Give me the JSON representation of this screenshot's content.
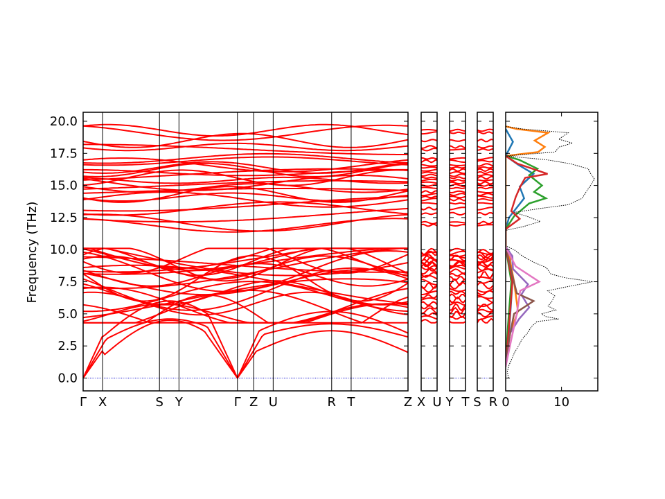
{
  "chart_data": {
    "type": "line",
    "ylabel": "Frequency (THz)",
    "ylim": [
      -1.0,
      20.7
    ],
    "y_ticks": [
      "0.0",
      "2.5",
      "5.0",
      "7.5",
      "10.0",
      "12.5",
      "15.0",
      "17.5",
      "20.0"
    ],
    "y_tick_values": [
      0.0,
      2.5,
      5.0,
      7.5,
      10.0,
      12.5,
      15.0,
      17.5,
      20.0
    ],
    "band_color": "#ff0000",
    "zero_line_color": "#0000cc",
    "band_panels": [
      {
        "kpoints": [
          {
            "label": "Γ",
            "pos": 0.0
          },
          {
            "label": "X",
            "pos": 0.06
          },
          {
            "label": "S",
            "pos": 0.235
          },
          {
            "label": "Y",
            "pos": 0.295
          },
          {
            "label": "Γ",
            "pos": 0.475
          },
          {
            "label": "Z",
            "pos": 0.525
          },
          {
            "label": "U",
            "pos": 0.585
          },
          {
            "label": "R",
            "pos": 0.765
          },
          {
            "label": "T",
            "pos": 0.825
          },
          {
            "label": "Z",
            "pos": 1.0
          }
        ]
      },
      {
        "kpoints": [
          {
            "label": "X",
            "pos": 0.0
          },
          {
            "label": "U",
            "pos": 1.0
          }
        ]
      },
      {
        "kpoints": [
          {
            "label": "Y",
            "pos": 0.0
          },
          {
            "label": "T",
            "pos": 1.0
          }
        ]
      },
      {
        "kpoints": [
          {
            "label": "S",
            "pos": 0.0
          },
          {
            "label": "R",
            "pos": 1.0
          }
        ]
      }
    ],
    "dos_panel": {
      "xlim": [
        0,
        16.5
      ],
      "x_ticks": [
        "0",
        "10"
      ],
      "x_tick_values": [
        0,
        10
      ],
      "total_style": "black dotted",
      "total_dos": [
        [
          0.5,
          0.0
        ],
        [
          0.3,
          0.5
        ],
        [
          0.6,
          1.0
        ],
        [
          1.1,
          1.5
        ],
        [
          1.6,
          2.0
        ],
        [
          2.3,
          2.5
        ],
        [
          2.9,
          3.0
        ],
        [
          3.9,
          3.5
        ],
        [
          4.6,
          4.0
        ],
        [
          5.6,
          4.4
        ],
        [
          9.5,
          4.6
        ],
        [
          7.1,
          4.8
        ],
        [
          6.4,
          5.0
        ],
        [
          9.0,
          5.3
        ],
        [
          7.6,
          5.6
        ],
        [
          8.3,
          6.0
        ],
        [
          8.8,
          6.4
        ],
        [
          7.5,
          6.8
        ],
        [
          10.9,
          7.1
        ],
        [
          15.6,
          7.5
        ],
        [
          10.8,
          7.8
        ],
        [
          8.1,
          8.1
        ],
        [
          7.3,
          8.6
        ],
        [
          5.1,
          9.0
        ],
        [
          3.0,
          9.5
        ],
        [
          1.5,
          10.0
        ],
        [
          0.0,
          10.3
        ],
        [
          0.0,
          11.5
        ],
        [
          3.2,
          11.8
        ],
        [
          6.2,
          12.2
        ],
        [
          3.8,
          12.6
        ],
        [
          1.5,
          12.9
        ],
        [
          6.1,
          13.2
        ],
        [
          11.2,
          13.5
        ],
        [
          13.7,
          14.0
        ],
        [
          14.4,
          14.5
        ],
        [
          15.2,
          15.0
        ],
        [
          15.9,
          15.5
        ],
        [
          15.1,
          16.0
        ],
        [
          14.8,
          16.3
        ],
        [
          11.5,
          16.7
        ],
        [
          7.3,
          17.0
        ],
        [
          0.0,
          17.3
        ],
        [
          8.8,
          17.6
        ],
        [
          9.6,
          18.0
        ],
        [
          12.0,
          18.3
        ],
        [
          9.5,
          18.6
        ],
        [
          11.2,
          19.1
        ],
        [
          3.0,
          19.4
        ],
        [
          0.0,
          19.6
        ]
      ],
      "projections": [
        {
          "color": "#1f77b4",
          "points": [
            [
              0,
              0.9
            ],
            [
              0.5,
              3.0
            ],
            [
              0.9,
              5.5
            ],
            [
              1.2,
              7.5
            ],
            [
              0.7,
              9.8
            ],
            [
              0,
              10.2
            ],
            [
              0,
              11.6
            ],
            [
              0.6,
              12.5
            ],
            [
              3.3,
              14.0
            ],
            [
              2.5,
              14.9
            ],
            [
              5.0,
              15.9
            ],
            [
              2.3,
              16.6
            ],
            [
              0,
              17.3
            ],
            [
              1.3,
              18.4
            ],
            [
              0,
              19.4
            ]
          ]
        },
        {
          "color": "#ff7f0e",
          "points": [
            [
              0,
              0.9
            ],
            [
              0.8,
              3.5
            ],
            [
              2.2,
              5.2
            ],
            [
              1.5,
              7.5
            ],
            [
              0.5,
              9.8
            ],
            [
              0,
              10.2
            ],
            [
              0,
              17.3
            ],
            [
              5.8,
              17.6
            ],
            [
              7.0,
              18.0
            ],
            [
              5.2,
              18.5
            ],
            [
              7.6,
              19.1
            ],
            [
              2.0,
              19.4
            ],
            [
              0,
              19.6
            ]
          ]
        },
        {
          "color": "#2ca02c",
          "points": [
            [
              0,
              0.9
            ],
            [
              0.4,
              4.0
            ],
            [
              1.0,
              7.5
            ],
            [
              0,
              10.2
            ],
            [
              0,
              11.6
            ],
            [
              1.5,
              12.6
            ],
            [
              4.2,
              13.6
            ],
            [
              7.2,
              14.0
            ],
            [
              5.1,
              14.5
            ],
            [
              6.5,
              15.0
            ],
            [
              4.2,
              15.8
            ],
            [
              5.7,
              16.3
            ],
            [
              2.4,
              17.0
            ],
            [
              0,
              17.3
            ]
          ]
        },
        {
          "color": "#d62728",
          "points": [
            [
              0,
              0.9
            ],
            [
              0.6,
              4.0
            ],
            [
              1.2,
              7.5
            ],
            [
              0,
              10.2
            ],
            [
              0,
              11.6
            ],
            [
              2.5,
              12.4
            ],
            [
              1.0,
              13.0
            ],
            [
              1.8,
              14.1
            ],
            [
              2.6,
              14.9
            ],
            [
              3.5,
              15.6
            ],
            [
              7.5,
              15.9
            ],
            [
              2.1,
              16.7
            ],
            [
              0,
              17.3
            ]
          ]
        },
        {
          "color": "#9467bd",
          "points": [
            [
              0,
              0.9
            ],
            [
              0.3,
              2.0
            ],
            [
              0.8,
              3.5
            ],
            [
              2.4,
              4.6
            ],
            [
              4.2,
              5.5
            ],
            [
              2.8,
              6.5
            ],
            [
              4.0,
              7.3
            ],
            [
              1.3,
              8.5
            ],
            [
              1.2,
              9.5
            ],
            [
              0,
              10.2
            ]
          ]
        },
        {
          "color": "#8c564b",
          "points": [
            [
              0,
              0.9
            ],
            [
              0.6,
              3.0
            ],
            [
              1.5,
              5.0
            ],
            [
              5.0,
              6.0
            ],
            [
              2.0,
              6.6
            ],
            [
              1.2,
              8.0
            ],
            [
              0,
              10.2
            ]
          ]
        },
        {
          "color": "#e377c2",
          "points": [
            [
              0,
              0.9
            ],
            [
              1.0,
              3.0
            ],
            [
              2.0,
              5.0
            ],
            [
              2.6,
              6.8
            ],
            [
              6.0,
              7.5
            ],
            [
              1.8,
              8.7
            ],
            [
              0,
              10.2
            ]
          ]
        }
      ]
    }
  }
}
